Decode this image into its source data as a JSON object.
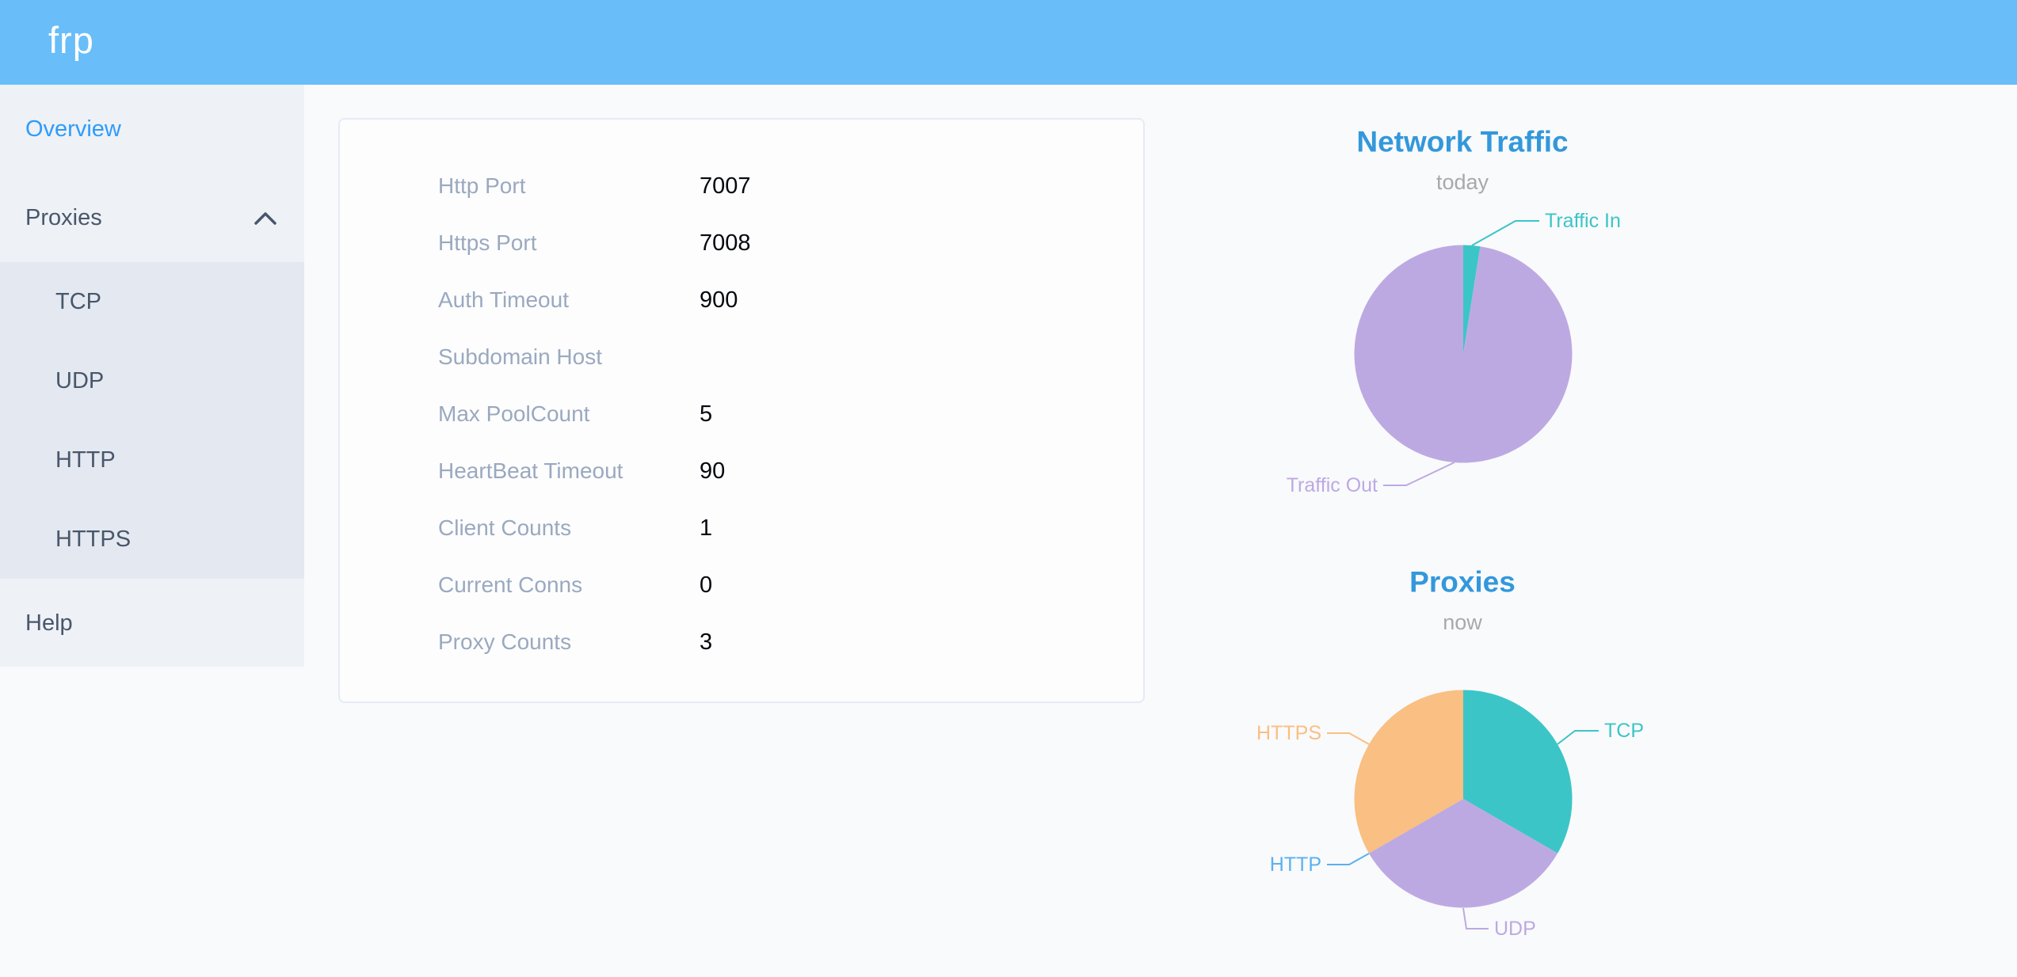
{
  "header": {
    "logo": "frp"
  },
  "sidebar": {
    "items": [
      {
        "label": "Overview",
        "active": true
      },
      {
        "label": "Proxies",
        "expanded": true
      },
      {
        "label": "TCP"
      },
      {
        "label": "UDP"
      },
      {
        "label": "HTTP"
      },
      {
        "label": "HTTPS"
      },
      {
        "label": "Help"
      }
    ]
  },
  "overview_card": {
    "rows": [
      {
        "label": "Http Port",
        "value": "7007"
      },
      {
        "label": "Https Port",
        "value": "7008"
      },
      {
        "label": "Auth Timeout",
        "value": "900"
      },
      {
        "label": "Subdomain Host",
        "value": ""
      },
      {
        "label": "Max PoolCount",
        "value": "5"
      },
      {
        "label": "HeartBeat Timeout",
        "value": "90"
      },
      {
        "label": "Client Counts",
        "value": "1"
      },
      {
        "label": "Current Conns",
        "value": "0"
      },
      {
        "label": "Proxy Counts",
        "value": "3"
      }
    ]
  },
  "chart_data": [
    {
      "type": "pie",
      "title": "Network Traffic",
      "subtitle": "today",
      "legend_position": "none",
      "value_unit": "% (estimated from arc angles)",
      "slices": [
        {
          "label": "Traffic In",
          "value": 2.5,
          "color": "#3cc5c7"
        },
        {
          "label": "Traffic Out",
          "value": 97.5,
          "color": "#bda9e2"
        }
      ]
    },
    {
      "type": "pie",
      "title": "Proxies",
      "subtitle": "now",
      "legend_position": "none",
      "value_unit": "count",
      "slices": [
        {
          "label": "TCP",
          "value": 1,
          "color": "#3cc5c7"
        },
        {
          "label": "UDP",
          "value": 1,
          "color": "#bda9e2"
        },
        {
          "label": "HTTP",
          "value": 0,
          "color": "#5ab1ef"
        },
        {
          "label": "HTTPS",
          "value": 1,
          "color": "#f9bf83"
        }
      ]
    }
  ],
  "colors": {
    "header_bg": "#69bdf9",
    "sidebar_bg": "#eef1f6",
    "submenu_bg": "#e4e8f1",
    "menu_text": "#48576a",
    "menu_active": "#2e9cfa",
    "card_label": "#9aa9bf",
    "chart_title": "#3398db"
  }
}
